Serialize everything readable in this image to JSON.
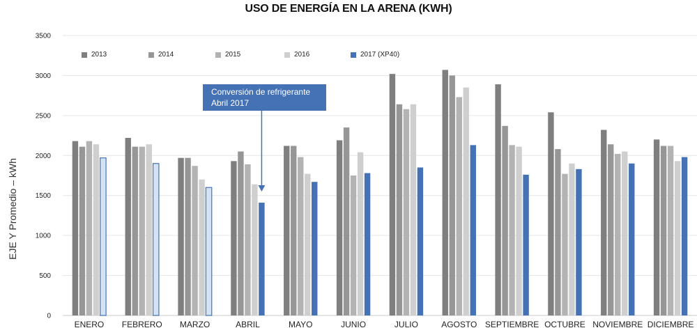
{
  "chart_data": {
    "type": "bar",
    "title": "USO DE ENERGÍA EN LA ARENA (KWH)",
    "xlabel": "",
    "ylabel": "EJE Y Promedio – kWh",
    "ylim": [
      0,
      3500
    ],
    "yticks": [
      0,
      500,
      1000,
      1500,
      2000,
      2500,
      3000,
      3500
    ],
    "grid": true,
    "legend_position": "top-left",
    "categories": [
      "ENERO",
      "FEBRERO",
      "MARZO",
      "ABRIL",
      "MAYO",
      "JUNIO",
      "JULIO",
      "AGOSTO",
      "SEPTIEMBRE",
      "OCTUBRE",
      "NOVIEMBRE",
      "DICIEMBRE"
    ],
    "series": [
      {
        "name": "2013",
        "color": "#7f7f7f",
        "values": [
          2180,
          2220,
          1970,
          1930,
          2120,
          2190,
          3020,
          3070,
          2890,
          2540,
          2320,
          2200
        ]
      },
      {
        "name": "2014",
        "color": "#969696",
        "values": [
          2110,
          2110,
          1970,
          2050,
          2120,
          2350,
          2640,
          3000,
          2370,
          2080,
          2140,
          2120
        ]
      },
      {
        "name": "2015",
        "color": "#b3b3b3",
        "values": [
          2180,
          2110,
          1870,
          1890,
          1980,
          1750,
          2580,
          2730,
          2130,
          1770,
          2020,
          2120
        ]
      },
      {
        "name": "2016",
        "color": "#cfcfcf",
        "values": [
          2140,
          2140,
          1700,
          1640,
          1770,
          2040,
          2640,
          2850,
          2110,
          1900,
          2050,
          1930
        ]
      },
      {
        "name": "2017 (XP40)",
        "color": "#4472b4",
        "values": [
          1970,
          1900,
          1600,
          1410,
          1670,
          1780,
          1850,
          2130,
          1760,
          1830,
          1900,
          1980
        ]
      }
    ],
    "outlined_bars": {
      "series": "2017 (XP40)",
      "categories": [
        "ENERO",
        "FEBRERO",
        "MARZO"
      ],
      "fill": "#d3e2f5"
    },
    "annotation": {
      "text_line1": "Conversión de refrigerante",
      "text_line2": "Abril 2017",
      "target_category": "ABRIL",
      "color": "#4472b4"
    }
  }
}
